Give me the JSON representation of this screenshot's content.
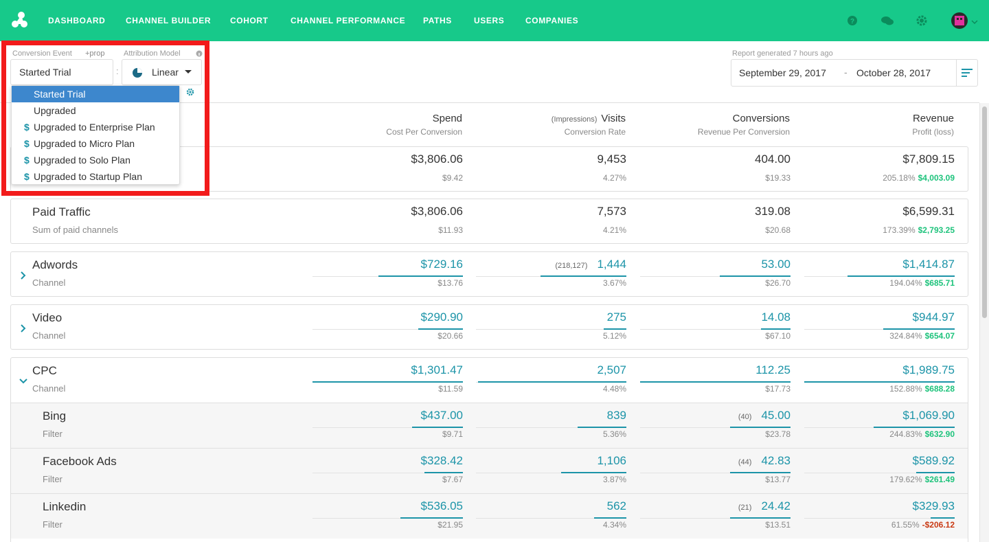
{
  "nav": {
    "items": [
      "DASHBOARD",
      "CHANNEL BUILDER",
      "COHORT",
      "CHANNEL PERFORMANCE",
      "PATHS",
      "USERS",
      "COMPANIES"
    ]
  },
  "controls": {
    "conversion_event_label": "Conversion Event",
    "prop_link": "+prop",
    "attribution_model_label": "Attribution Model",
    "conversion_event_value": "Started Trial",
    "separator": ":",
    "attribution_model_value": "Linear",
    "dropdown_options": [
      {
        "label": "Started Trial",
        "selected": true
      },
      {
        "label": "Upgraded"
      },
      {
        "currency_marker": "$",
        "label": "Upgraded to Enterprise Plan"
      },
      {
        "currency_marker": "$",
        "label": "Upgraded to Micro Plan"
      },
      {
        "currency_marker": "$",
        "label": "Upgraded to Solo Plan"
      },
      {
        "currency_marker": "$",
        "label": "Upgraded to Startup Plan"
      }
    ]
  },
  "report": {
    "generated": "Report generated 7 hours ago",
    "start_date": "September 29, 2017",
    "date_separator": "-",
    "end_date": "October 28, 2017"
  },
  "table": {
    "columns": [
      {
        "title": "Spend",
        "subtitle": "Cost Per Conversion"
      },
      {
        "note": "(Impressions)",
        "title": "Visits",
        "subtitle": "Conversion Rate"
      },
      {
        "title": "Conversions",
        "subtitle": "Revenue Per Conversion"
      },
      {
        "title": "Revenue",
        "subtitle": "Profit (loss)"
      }
    ],
    "rows": [
      {
        "cells": [
          {
            "value": "$3,806.06",
            "sub": "$9.42"
          },
          {
            "value": "9,453",
            "sub": "4.27%"
          },
          {
            "value": "404.00",
            "sub": "$19.33"
          },
          {
            "value": "$7,809.15",
            "sub": "205.18%",
            "profit": "$4,003.09"
          }
        ]
      },
      {
        "name": "Paid Traffic",
        "kind": "Sum of paid channels",
        "cells": [
          {
            "value": "$3,806.06",
            "sub": "$11.93"
          },
          {
            "value": "7,573",
            "sub": "4.21%"
          },
          {
            "value": "319.08",
            "sub": "$20.68"
          },
          {
            "value": "$6,599.31",
            "sub": "173.39%",
            "profit": "$2,793.25"
          }
        ]
      },
      {
        "name": "Adwords",
        "kind": "Channel",
        "cells": [
          {
            "value": "$729.16",
            "sub": "$13.76"
          },
          {
            "value": "1,444",
            "note": "(218,127)",
            "sub": "3.67%"
          },
          {
            "value": "53.00",
            "sub": "$26.70"
          },
          {
            "value": "$1,414.87",
            "sub": "194.04%",
            "profit": "$685.71"
          }
        ]
      },
      {
        "name": "Video",
        "kind": "Channel",
        "cells": [
          {
            "value": "$290.90",
            "sub": "$20.66"
          },
          {
            "value": "275",
            "sub": "5.12%"
          },
          {
            "value": "14.08",
            "sub": "$67.10"
          },
          {
            "value": "$944.97",
            "sub": "324.84%",
            "profit": "$654.07"
          }
        ]
      },
      {
        "name": "CPC",
        "kind": "Channel",
        "cells": [
          {
            "value": "$1,301.47",
            "sub": "$11.59"
          },
          {
            "value": "2,507",
            "sub": "4.48%"
          },
          {
            "value": "112.25",
            "sub": "$17.73"
          },
          {
            "value": "$1,989.75",
            "sub": "152.88%",
            "profit": "$688.28"
          }
        ],
        "children": [
          {
            "name": "Bing",
            "kind": "Filter",
            "cells": [
              {
                "value": "$437.00",
                "sub": "$9.71"
              },
              {
                "value": "839",
                "sub": "5.36%"
              },
              {
                "value": "45.00",
                "note": "(40)",
                "sub": "$23.78"
              },
              {
                "value": "$1,069.90",
                "sub": "244.83%",
                "profit": "$632.90"
              }
            ]
          },
          {
            "name": "Facebook Ads",
            "kind": "Filter",
            "cells": [
              {
                "value": "$328.42",
                "sub": "$7.67"
              },
              {
                "value": "1,106",
                "sub": "3.87%"
              },
              {
                "value": "42.83",
                "note": "(44)",
                "sub": "$13.77"
              },
              {
                "value": "$589.92",
                "sub": "179.62%",
                "profit": "$261.49"
              }
            ]
          },
          {
            "name": "Linkedin",
            "kind": "Filter",
            "cells": [
              {
                "value": "$536.05",
                "sub": "$21.95"
              },
              {
                "value": "562",
                "sub": "4.34%"
              },
              {
                "value": "24.42",
                "note": "(21)",
                "sub": "$13.51"
              },
              {
                "value": "$329.93",
                "sub": "61.55%",
                "profit": "-$206.12"
              }
            ]
          }
        ]
      }
    ]
  }
}
